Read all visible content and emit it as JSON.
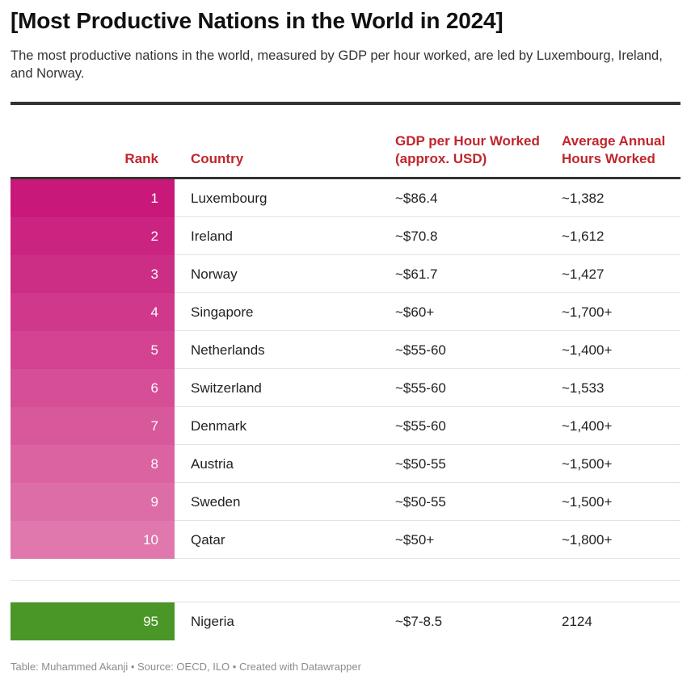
{
  "title": "[Most Productive Nations in the World in 2024]",
  "subtitle": "The most productive nations in the world, measured by GDP per hour worked, are led by Luxembourg, Ireland, and Norway.",
  "footer": "Table: Muhammed Akanji • Source: OECD, ILO • Created with Datawrapper",
  "colors": {
    "header_text": "#c0262c",
    "rank_gradient_start": "#c8197a",
    "rank_gradient_end": "#e078ad",
    "nigeria_rank": "#4a9626"
  },
  "chart_data": {
    "type": "table",
    "columns": [
      "Rank",
      "Country",
      "GDP per Hour Worked (approx. USD)",
      "Average Annual Hours Worked"
    ],
    "rows": [
      {
        "rank": "1",
        "country": "Luxembourg",
        "gdp": "~$86.4",
        "hours": "~1,382"
      },
      {
        "rank": "2",
        "country": "Ireland",
        "gdp": "~$70.8",
        "hours": "~1,612"
      },
      {
        "rank": "3",
        "country": "Norway",
        "gdp": "~$61.7",
        "hours": "~1,427"
      },
      {
        "rank": "4",
        "country": "Singapore",
        "gdp": "~$60+",
        "hours": "~1,700+"
      },
      {
        "rank": "5",
        "country": "Netherlands",
        "gdp": "~$55-60",
        "hours": "~1,400+"
      },
      {
        "rank": "6",
        "country": "Switzerland",
        "gdp": "~$55-60",
        "hours": "~1,533"
      },
      {
        "rank": "7",
        "country": "Denmark",
        "gdp": "~$55-60",
        "hours": "~1,400+"
      },
      {
        "rank": "8",
        "country": "Austria",
        "gdp": "~$50-55",
        "hours": "~1,500+"
      },
      {
        "rank": "9",
        "country": "Sweden",
        "gdp": "~$50-55",
        "hours": "~1,500+"
      },
      {
        "rank": "10",
        "country": "Qatar",
        "gdp": "~$50+",
        "hours": "~1,800+"
      }
    ],
    "highlight_row": {
      "rank": "95",
      "country": "Nigeria",
      "gdp": "~$7-8.5",
      "hours": "2124"
    }
  }
}
